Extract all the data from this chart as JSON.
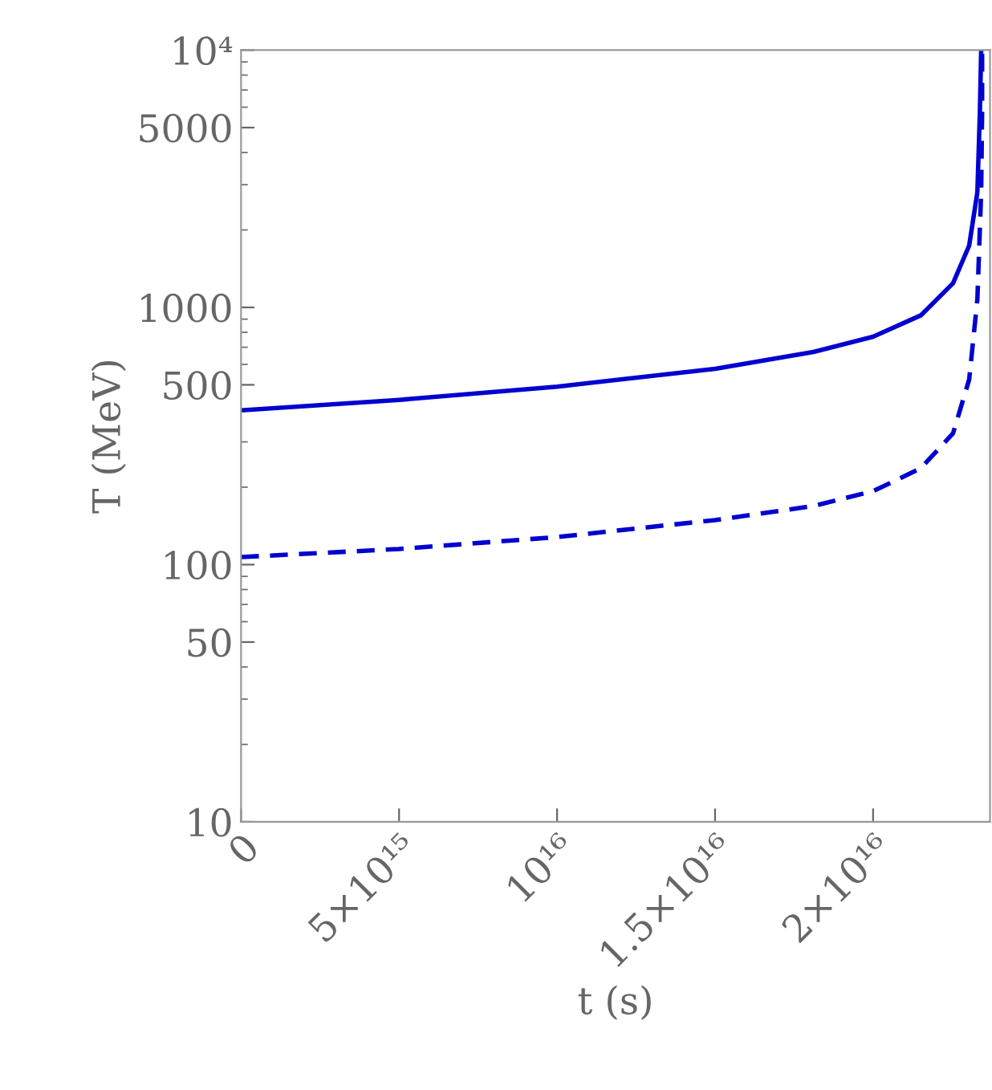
{
  "chart_data": {
    "type": "line",
    "xlabel": "t (s)",
    "ylabel": "T (MeV)",
    "log": "y",
    "xlim": [
      0,
      2.37e+16
    ],
    "ylim": [
      10,
      10000
    ],
    "xticks": [
      0,
      {
        "value": 5000000000000000.0,
        "label": "5×10¹⁵"
      },
      {
        "value": 1e+16,
        "label": "10¹⁶"
      },
      {
        "value": 1.5e+16,
        "label": "1.5×10¹⁶"
      },
      {
        "value": 2e+16,
        "label": "2×10¹⁶"
      }
    ],
    "yticks": [
      10,
      50,
      100,
      500,
      1000,
      5000,
      {
        "value": 10000,
        "label": "10⁴"
      }
    ],
    "grid": false,
    "series": [
      {
        "color": "#0000d0",
        "line_style": "solid",
        "x": [
          0,
          5000000000000000.0,
          1e+16,
          1.5e+16,
          1.811e+16,
          2e+16,
          2.151e+16,
          2.253e+16,
          2.304e+16,
          2.33e+16,
          2.338e+16,
          2.342e+16
        ],
        "values": [
          398,
          437,
          492,
          577,
          671,
          769,
          931,
          1241,
          1738,
          2806,
          5770,
          10000
        ]
      },
      {
        "color": "#0000d0",
        "line_style": "dashed",
        "x": [
          0,
          5000000000000000.0,
          1e+16,
          1.5e+16,
          1.811e+16,
          2e+16,
          2.151e+16,
          2.253e+16,
          2.304e+16,
          2.33e+16,
          2.342e+16,
          2.345e+16,
          2.345e+16
        ],
        "values": [
          107,
          115,
          128,
          149,
          169,
          193,
          237,
          324,
          524,
          1074,
          2806,
          5770,
          10000
        ]
      }
    ]
  }
}
